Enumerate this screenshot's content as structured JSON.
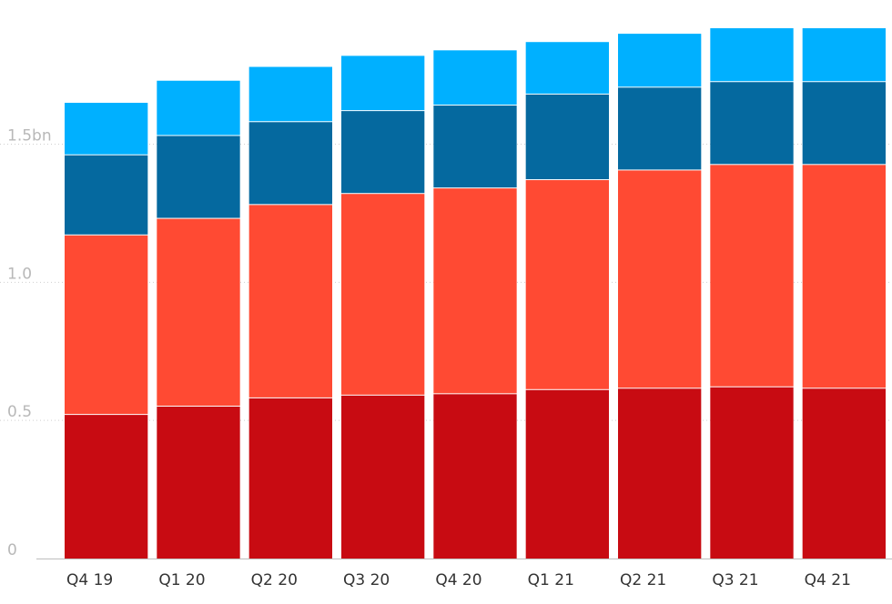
{
  "chart_data": {
    "type": "bar",
    "stacked": true,
    "categories": [
      "Q4 19",
      "Q1 20",
      "Q2 20",
      "Q3 20",
      "Q4 20",
      "Q1 21",
      "Q2 21",
      "Q3 21",
      "Q4 21"
    ],
    "series": [
      {
        "color": "#c80b12",
        "values": [
          0.52,
          0.55,
          0.58,
          0.59,
          0.595,
          0.61,
          0.615,
          0.62,
          0.615
        ]
      },
      {
        "color": "#ff4a33",
        "values": [
          0.65,
          0.68,
          0.7,
          0.73,
          0.745,
          0.76,
          0.79,
          0.805,
          0.81
        ]
      },
      {
        "color": "#05699f",
        "values": [
          0.29,
          0.3,
          0.3,
          0.3,
          0.3,
          0.31,
          0.3,
          0.3,
          0.3
        ]
      },
      {
        "color": "#00b0ff",
        "values": [
          0.19,
          0.2,
          0.2,
          0.2,
          0.2,
          0.19,
          0.195,
          0.195,
          0.195
        ]
      }
    ],
    "yticks": [
      {
        "value": 0,
        "label": "0"
      },
      {
        "value": 0.5,
        "label": "0.5"
      },
      {
        "value": 1.0,
        "label": "1.0"
      },
      {
        "value": 1.5,
        "label": "1.5bn"
      }
    ],
    "ylim": [
      0,
      1.93
    ],
    "grid": true,
    "title": "",
    "xlabel": "",
    "ylabel": ""
  }
}
